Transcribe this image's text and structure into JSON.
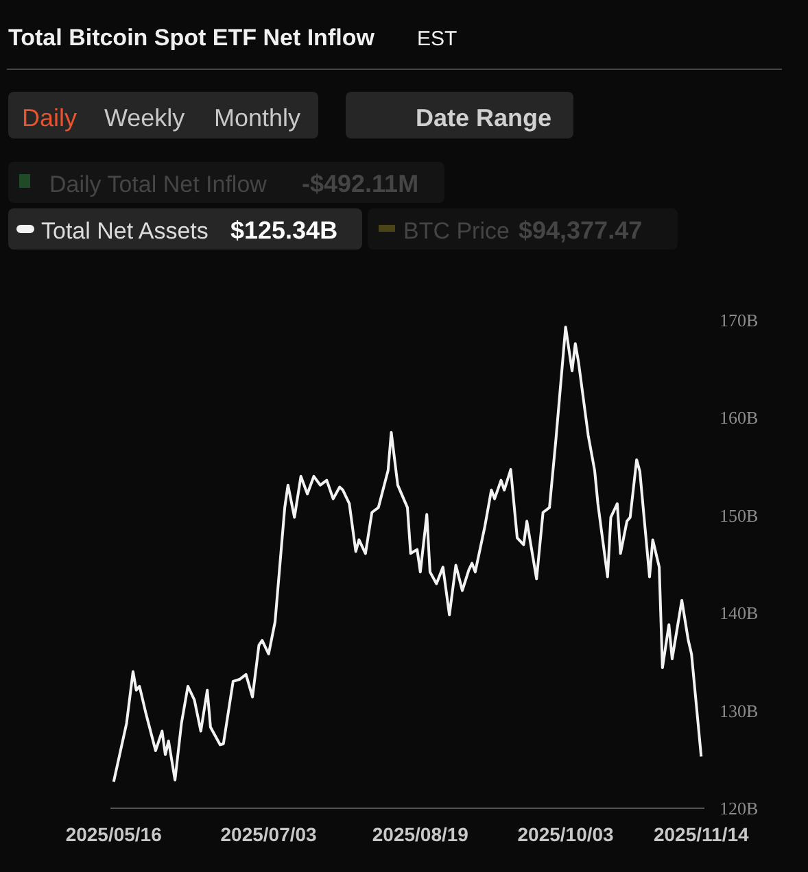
{
  "chart_data": {
    "type": "line",
    "title": "Total Bitcoin Spot ETF Net Inflow",
    "annotations": [
      "EST",
      "Daily",
      "Weekly",
      "Monthly",
      "Date Range",
      "Daily Total Net Inflow",
      "-$492.11M",
      "$125.34B",
      "BTC Price",
      "$94,377.47"
    ],
    "x": [
      "2025-05-16",
      "2025-05-20",
      "2025-05-22",
      "2025-05-23",
      "2025-05-24",
      "2025-05-26",
      "2025-05-29",
      "2025-05-31",
      "2025-06-01",
      "2025-06-02",
      "2025-06-04",
      "2025-06-06",
      "2025-06-08",
      "2025-06-10",
      "2025-06-12",
      "2025-06-14",
      "2025-06-15",
      "2025-06-18",
      "2025-06-19",
      "2025-06-22",
      "2025-06-24",
      "2025-06-26",
      "2025-06-28",
      "2025-06-30",
      "2025-07-01",
      "2025-07-03",
      "2025-07-05",
      "2025-07-08",
      "2025-07-09",
      "2025-07-11",
      "2025-07-13",
      "2025-07-15",
      "2025-07-17",
      "2025-07-19",
      "2025-07-21",
      "2025-07-23",
      "2025-07-25",
      "2025-07-26",
      "2025-07-28",
      "2025-07-30",
      "2025-07-31",
      "2025-08-02",
      "2025-08-04",
      "2025-08-06",
      "2025-08-09",
      "2025-08-10",
      "2025-08-12",
      "2025-08-15",
      "2025-08-16",
      "2025-08-18",
      "2025-08-19",
      "2025-08-21",
      "2025-08-22",
      "2025-08-24",
      "2025-08-26",
      "2025-08-28",
      "2025-08-30",
      "2025-09-01",
      "2025-09-03",
      "2025-09-04",
      "2025-09-05",
      "2025-09-08",
      "2025-09-10",
      "2025-09-11",
      "2025-09-13",
      "2025-09-14",
      "2025-09-16",
      "2025-09-18",
      "2025-09-20",
      "2025-09-21",
      "2025-09-24",
      "2025-09-26",
      "2025-09-28",
      "2025-09-30",
      "2025-10-03",
      "2025-10-05",
      "2025-10-06",
      "2025-10-07",
      "2025-10-10",
      "2025-10-12",
      "2025-10-13",
      "2025-10-16",
      "2025-10-17",
      "2025-10-19",
      "2025-10-20",
      "2025-10-22",
      "2025-10-23",
      "2025-10-25",
      "2025-10-26",
      "2025-10-29",
      "2025-10-30",
      "2025-11-01",
      "2025-11-02",
      "2025-11-04",
      "2025-11-05",
      "2025-11-08",
      "2025-11-10",
      "2025-11-11",
      "2025-11-14"
    ],
    "series": [
      {
        "name": "Total Net Assets",
        "color": "#f2f2f2",
        "values": [
          122.7,
          128.7,
          134.0,
          132.1,
          132.5,
          129.7,
          125.9,
          127.9,
          125.5,
          126.9,
          122.9,
          128.7,
          132.5,
          131.1,
          127.9,
          132.1,
          128.3,
          126.5,
          126.6,
          133.0,
          133.2,
          133.7,
          131.4,
          136.7,
          137.2,
          135.8,
          139.1,
          150.8,
          153.1,
          149.8,
          154.0,
          152.2,
          154.0,
          153.1,
          153.6,
          151.7,
          152.9,
          152.6,
          151.2,
          146.3,
          147.5,
          146.1,
          150.3,
          150.8,
          154.6,
          158.5,
          153.1,
          150.8,
          146.1,
          146.5,
          144.2,
          150.1,
          144.2,
          143.0,
          144.7,
          139.8,
          144.9,
          142.3,
          144.4,
          145.1,
          144.2,
          148.9,
          152.6,
          151.7,
          153.6,
          152.6,
          154.7,
          147.7,
          147.0,
          149.4,
          143.5,
          150.3,
          150.8,
          157.8,
          169.3,
          164.8,
          167.6,
          165.7,
          158.2,
          154.6,
          151.2,
          143.7,
          149.8,
          151.2,
          146.1,
          149.4,
          149.8,
          155.7,
          154.5,
          143.7,
          147.5,
          144.7,
          134.4,
          138.8,
          135.3,
          141.3,
          137.2,
          135.8,
          125.3
        ]
      }
    ],
    "xlim": [
      "2025-05-15",
      "2025-11-15"
    ],
    "xticks": [
      {
        "value": "2025-05-16",
        "label": "2025/05/16"
      },
      {
        "value": "2025-07-03",
        "label": "2025/07/03"
      },
      {
        "value": "2025-08-19",
        "label": "2025/08/19"
      },
      {
        "value": "2025-10-03",
        "label": "2025/10/03"
      },
      {
        "value": "2025-11-14",
        "label": "2025/11/14"
      }
    ],
    "ylim": [
      120,
      170
    ],
    "yticks": [
      {
        "value": 120,
        "label": "120B"
      },
      {
        "value": 130,
        "label": "130B"
      },
      {
        "value": 140,
        "label": "140B"
      },
      {
        "value": 150,
        "label": "150B"
      },
      {
        "value": 160,
        "label": "160B"
      },
      {
        "value": 170,
        "label": "170B"
      }
    ],
    "legend": "top left"
  }
}
